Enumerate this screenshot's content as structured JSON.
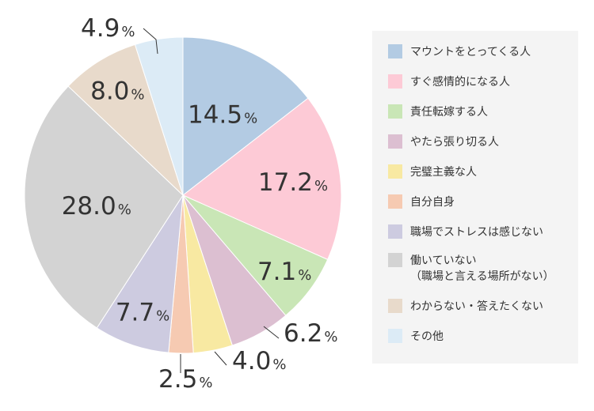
{
  "chart_data": {
    "type": "pie",
    "title": "",
    "unit": "%",
    "start_angle_deg": 0,
    "direction": "clockwise",
    "slices": [
      {
        "label": "マウントをとってくる人",
        "value": 14.5,
        "color": "#b3cbe3"
      },
      {
        "label": "すぐ感情的になる人",
        "value": 17.2,
        "color": "#fdcad6"
      },
      {
        "label": "責任転嫁する人",
        "value": 7.1,
        "color": "#c9e6b6"
      },
      {
        "label": "やたら張り切る人",
        "value": 6.2,
        "color": "#dcbfd1"
      },
      {
        "label": "完璧主義な人",
        "value": 4.0,
        "color": "#f8e9a2"
      },
      {
        "label": "自分自身",
        "value": 2.5,
        "color": "#f6cab2"
      },
      {
        "label": "職場でストレスは感じない",
        "value": 7.7,
        "color": "#cdcbe0"
      },
      {
        "label": "働いていない\n（職場と言える場所がない）",
        "value": 28.0,
        "color": "#d3d3d3"
      },
      {
        "label": "わからない・答えたくない",
        "value": 8.0,
        "color": "#e8dacb"
      },
      {
        "label": "その他",
        "value": 4.9,
        "color": "#dcebf6"
      }
    ],
    "legend_position": "right"
  }
}
